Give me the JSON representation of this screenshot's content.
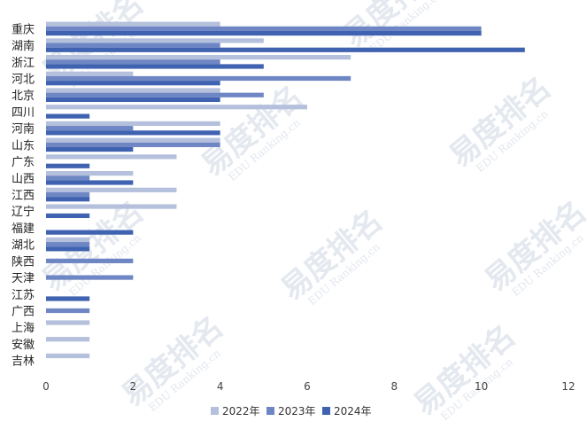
{
  "chart_data": {
    "type": "bar",
    "orientation": "horizontal",
    "categories": [
      "重庆",
      "湖南",
      "浙江",
      "河北",
      "北京",
      "四川",
      "河南",
      "山东",
      "广东",
      "山西",
      "江西",
      "辽宁",
      "福建",
      "湖北",
      "陕西",
      "天津",
      "江苏",
      "广西",
      "上海",
      "安徽",
      "吉林"
    ],
    "series": [
      {
        "name": "2022年",
        "color": "#b4c0dc",
        "values": [
          4,
          5,
          7,
          2,
          4,
          6,
          4,
          4,
          3,
          2,
          3,
          3,
          0,
          1,
          0,
          0,
          0,
          0,
          1,
          1,
          1
        ]
      },
      {
        "name": "2023年",
        "color": "#6f86c4",
        "values": [
          10,
          4,
          4,
          7,
          5,
          0,
          2,
          4,
          0,
          1,
          1,
          0,
          0,
          1,
          2,
          2,
          0,
          1,
          0,
          0,
          0
        ]
      },
      {
        "name": "2024年",
        "color": "#3f63b0",
        "values": [
          10,
          11,
          5,
          4,
          4,
          1,
          4,
          2,
          1,
          2,
          1,
          1,
          2,
          1,
          0,
          0,
          1,
          0,
          0,
          0,
          0
        ]
      }
    ],
    "x_ticks": [
      "0",
      "2",
      "4",
      "6",
      "8",
      "10",
      "12"
    ],
    "xlim": [
      0,
      12
    ],
    "grid": false,
    "legend_position": "bottom"
  },
  "watermark": {
    "brand": "易度排名",
    "sub": "EDU Ranking.cn"
  }
}
